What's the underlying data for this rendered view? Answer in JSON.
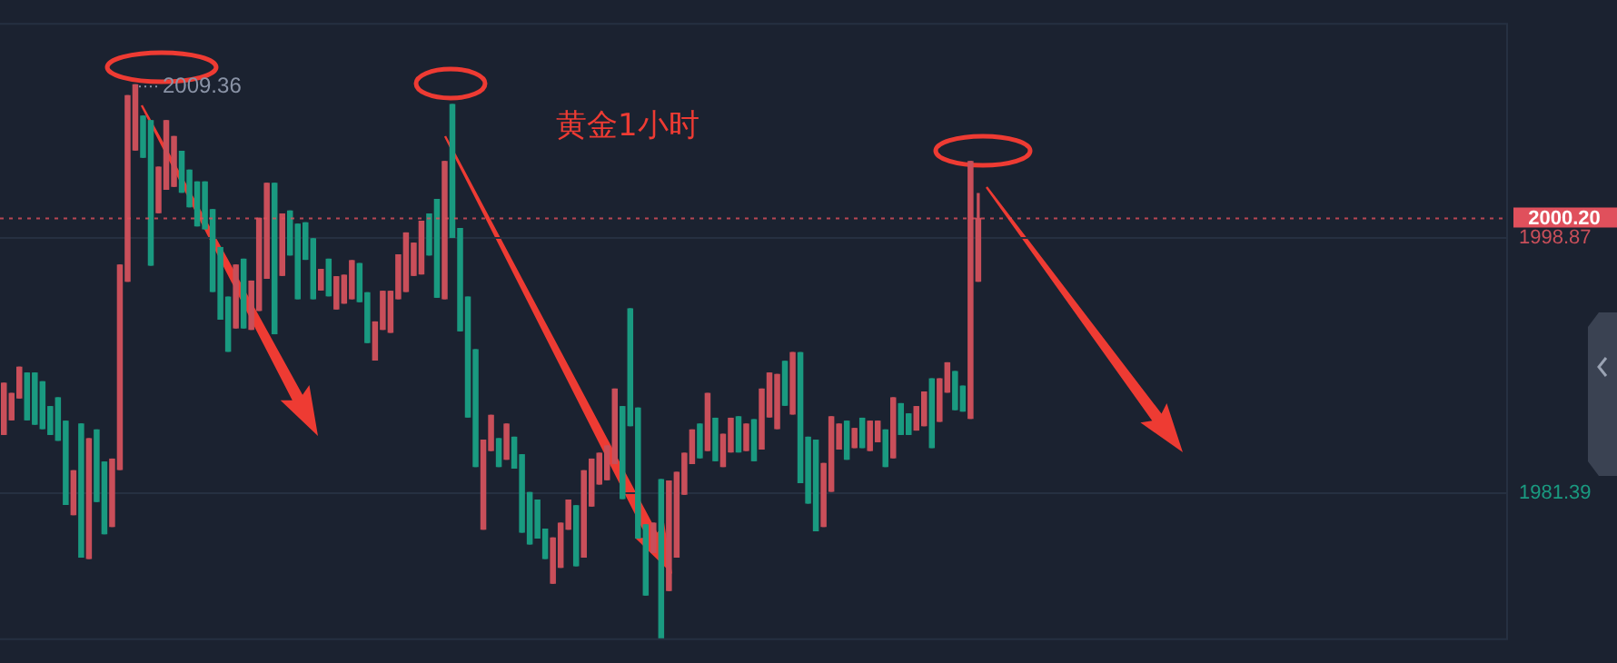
{
  "chart_data": {
    "type": "candlestick",
    "categories": [
      null,
      null,
      null,
      null,
      null,
      null,
      null,
      null,
      null,
      null,
      null,
      null,
      null,
      null,
      null,
      null,
      null,
      null,
      null,
      null,
      null,
      null,
      null,
      null,
      null,
      null,
      null,
      null,
      null,
      null,
      null,
      null,
      null,
      null,
      null,
      null,
      null,
      null,
      null,
      null,
      null,
      null,
      null,
      null,
      null,
      null,
      null,
      null,
      null,
      null,
      null,
      null,
      null,
      null,
      null,
      null,
      null,
      null,
      null,
      null,
      null,
      null,
      null,
      null,
      null,
      null,
      null,
      null,
      null,
      null,
      null,
      null,
      null,
      null,
      null,
      null,
      null,
      null,
      null,
      null,
      null,
      null,
      null,
      null,
      null,
      null,
      null,
      null,
      null,
      null,
      null,
      null,
      null,
      null,
      null,
      null,
      null,
      null,
      null,
      null,
      null,
      null,
      null,
      null,
      null,
      null,
      null,
      null,
      null,
      null,
      null,
      null,
      null,
      null,
      null,
      null,
      null,
      null,
      null,
      null,
      null,
      null,
      null,
      null,
      null,
      null,
      null,
      null,
      null,
      null,
      null,
      null,
      null,
      null,
      null,
      null,
      null,
      null,
      null,
      null,
      null,
      null,
      null,
      null,
      null,
      null,
      null,
      null,
      null,
      null,
      null,
      null,
      null,
      null,
      null,
      null,
      null,
      null,
      null,
      null,
      null,
      null,
      null,
      null,
      null,
      null,
      null,
      null,
      null,
      null,
      null,
      null,
      null,
      null,
      null,
      null,
      null,
      null,
      null,
      null,
      null,
      null,
      null,
      null,
      null,
      null,
      null,
      null,
      null,
      null,
      null,
      null,
      null,
      null,
      null
    ],
    "ohlc": [
      [
        1985.4,
        1988.9,
        1985.4,
        1988.9
      ],
      [
        1986.4,
        1988.2,
        1986.4,
        1988.2
      ],
      [
        1987.9,
        1990.0,
        1987.9,
        1990.0
      ],
      [
        1989.6,
        1989.6,
        1986.4,
        1986.4
      ],
      [
        1989.6,
        1989.6,
        1986.1,
        1986.1
      ],
      [
        1989.0,
        1989.0,
        1985.8,
        1985.8
      ],
      [
        1987.3,
        1987.3,
        1985.4,
        1985.4
      ],
      [
        1987.9,
        1987.9,
        1985.0,
        1985.0
      ],
      [
        1986.3,
        1986.3,
        1980.6,
        1980.6
      ],
      [
        1979.9,
        1982.9,
        1979.9,
        1982.9
      ],
      [
        1986.1,
        1986.1,
        1977.0,
        1977.0
      ],
      [
        1976.9,
        1985.1,
        1976.9,
        1985.1
      ],
      [
        1985.7,
        1985.7,
        1980.8,
        1980.8
      ],
      [
        1983.5,
        1983.5,
        1978.6,
        1978.6
      ],
      [
        1979.1,
        1983.7,
        1979.1,
        1983.7
      ],
      [
        1983.0,
        1997.0,
        1983.0,
        1997.0
      ],
      [
        1995.9,
        2008.6,
        1995.9,
        2008.6
      ],
      [
        2004.9,
        2009.36,
        2004.9,
        2009.36
      ],
      [
        2007.2,
        2007.2,
        2004.4,
        2004.4
      ],
      [
        2006.9,
        2006.9,
        1997.0,
        1997.0
      ],
      [
        2000.6,
        2003.7,
        2000.6,
        2003.7
      ],
      [
        2002.2,
        2006.9,
        2002.2,
        2006.9
      ],
      [
        2002.4,
        2005.8,
        2002.4,
        2005.8
      ],
      [
        2004.8,
        2004.8,
        2002.0,
        2002.0
      ],
      [
        2003.5,
        2003.5,
        2001.0,
        2001.0
      ],
      [
        2002.7,
        2002.7,
        1999.7,
        1999.7
      ],
      [
        2002.7,
        2002.7,
        1999.5,
        1999.5
      ],
      [
        2000.8,
        2000.8,
        1995.2,
        1995.2
      ],
      [
        1998.2,
        1998.2,
        1993.3,
        1993.3
      ],
      [
        1994.8,
        1994.8,
        1991.1,
        1991.1
      ],
      [
        1992.7,
        1997.0,
        1992.7,
        1997.0
      ],
      [
        1997.4,
        1997.4,
        1992.7,
        1992.7
      ],
      [
        1992.6,
        1995.9,
        1992.6,
        1995.9
      ],
      [
        1993.9,
        2000.2,
        1993.9,
        2000.2
      ],
      [
        1996.1,
        2002.6,
        1996.1,
        2002.6
      ],
      [
        2002.6,
        2002.6,
        1992.3,
        1992.3
      ],
      [
        1996.3,
        2000.5,
        1996.3,
        2000.5
      ],
      [
        2000.7,
        2000.7,
        1997.7,
        1997.7
      ],
      [
        1999.8,
        1999.8,
        1994.7,
        1994.7
      ],
      [
        1999.9,
        1999.9,
        1997.4,
        1997.4
      ],
      [
        1998.8,
        1998.8,
        1994.7,
        1994.7
      ],
      [
        1995.3,
        1996.7,
        1995.3,
        1996.7
      ],
      [
        1997.4,
        1997.4,
        1994.9,
        1994.9
      ],
      [
        1994.0,
        1996.2,
        1994.0,
        1996.2
      ],
      [
        1994.4,
        1996.3,
        1994.4,
        1996.3
      ],
      [
        1994.7,
        1997.3,
        1994.7,
        1997.3
      ],
      [
        1997.1,
        1997.1,
        1994.5,
        1994.5
      ],
      [
        1995.1,
        1995.1,
        1991.7,
        1991.7
      ],
      [
        1990.5,
        1993.1,
        1990.5,
        1993.1
      ],
      [
        1992.6,
        1995.2,
        1992.6,
        1995.2
      ],
      [
        1992.4,
        1995.2,
        1992.4,
        1995.2
      ],
      [
        1994.7,
        1997.7,
        1994.7,
        1997.7
      ],
      [
        1995.2,
        1999.2,
        1995.2,
        1999.2
      ],
      [
        1996.3,
        1998.5,
        1996.3,
        1998.5
      ],
      [
        1996.4,
        2000.0,
        1996.4,
        2000.0
      ],
      [
        2000.5,
        2000.5,
        1997.7,
        1997.7
      ],
      [
        2001.5,
        2001.5,
        1994.8,
        1994.8
      ],
      [
        1994.7,
        2004.1,
        1994.7,
        2004.1
      ],
      [
        2008.0,
        2008.0,
        1998.9,
        1998.9
      ],
      [
        1999.5,
        1999.5,
        1992.5,
        1992.5
      ],
      [
        1994.8,
        1994.8,
        1986.6,
        1986.6
      ],
      [
        1991.2,
        1991.2,
        1983.2,
        1983.2
      ],
      [
        1978.9,
        1985.0,
        1978.9,
        1985.0
      ],
      [
        1984.3,
        1986.7,
        1984.3,
        1986.7
      ],
      [
        1985.1,
        1985.1,
        1983.2,
        1983.2
      ],
      [
        1983.7,
        1986.1,
        1983.7,
        1986.1
      ],
      [
        1985.2,
        1985.2,
        1983.1,
        1983.1
      ],
      [
        1984.0,
        1984.0,
        1978.7,
        1978.7
      ],
      [
        1981.4,
        1981.4,
        1977.9,
        1977.9
      ],
      [
        1980.9,
        1980.9,
        1978.3,
        1978.3
      ],
      [
        1978.9,
        1978.9,
        1976.9,
        1976.9
      ],
      [
        1975.2,
        1978.3,
        1975.2,
        1978.3
      ],
      [
        1976.3,
        1979.3,
        1976.3,
        1979.3
      ],
      [
        1978.9,
        1980.9,
        1978.9,
        1980.9
      ],
      [
        1980.5,
        1980.5,
        1976.4,
        1976.4
      ],
      [
        1977.0,
        1982.9,
        1977.0,
        1982.9
      ],
      [
        1980.5,
        1983.7,
        1980.5,
        1983.7
      ],
      [
        1982.0,
        1984.1,
        1982.0,
        1984.1
      ],
      [
        1982.3,
        1984.6,
        1982.3,
        1984.6
      ],
      [
        1983.4,
        1988.5,
        1983.4,
        1988.5
      ],
      [
        1987.3,
        1987.3,
        1981.0,
        1981.0
      ],
      [
        1994.0,
        1994.0,
        1986.0,
        1986.0
      ],
      [
        1987.2,
        1987.2,
        1978.3,
        1978.3
      ],
      [
        1979.2,
        1979.2,
        1974.4,
        1974.4
      ],
      [
        1977.3,
        1979.3,
        1977.3,
        1979.3
      ],
      [
        1982.3,
        1982.3,
        1971.4,
        1971.4
      ],
      [
        1974.7,
        1982.2,
        1974.7,
        1982.2
      ],
      [
        1977.0,
        1982.8,
        1977.0,
        1982.8
      ],
      [
        1981.3,
        1984.1,
        1981.3,
        1984.1
      ],
      [
        1983.4,
        1985.7,
        1983.4,
        1985.7
      ],
      [
        1986.1,
        1986.1,
        1983.8,
        1983.8
      ],
      [
        1984.3,
        1988.2,
        1984.3,
        1988.2
      ],
      [
        1986.5,
        1986.5,
        1983.6,
        1983.6
      ],
      [
        1983.2,
        1985.4,
        1983.2,
        1985.4
      ],
      [
        1984.2,
        1986.5,
        1984.2,
        1986.5
      ],
      [
        1986.6,
        1986.6,
        1984.2,
        1984.2
      ],
      [
        1984.3,
        1986.1,
        1984.3,
        1986.1
      ],
      [
        1986.4,
        1986.4,
        1983.6,
        1983.6
      ],
      [
        1984.4,
        1988.5,
        1984.4,
        1988.5
      ],
      [
        1986.6,
        1989.6,
        1986.6,
        1989.6
      ],
      [
        1985.8,
        1989.5,
        1985.8,
        1989.5
      ],
      [
        1990.4,
        1990.4,
        1987.4,
        1987.4
      ],
      [
        1986.8,
        1991.0,
        1986.8,
        1991.0
      ],
      [
        1991.0,
        1991.0,
        1982.1,
        1982.1
      ],
      [
        1985.2,
        1985.2,
        1980.7,
        1980.7
      ],
      [
        1985.0,
        1985.0,
        1978.8,
        1978.8
      ],
      [
        1979.1,
        1983.4,
        1979.1,
        1983.4
      ],
      [
        1981.5,
        1986.6,
        1981.5,
        1986.6
      ],
      [
        1984.4,
        1986.1,
        1984.4,
        1986.1
      ],
      [
        1986.3,
        1986.3,
        1983.7,
        1983.7
      ],
      [
        1984.5,
        1985.8,
        1984.5,
        1985.8
      ],
      [
        1986.5,
        1986.5,
        1984.5,
        1984.5
      ],
      [
        1984.3,
        1986.3,
        1984.3,
        1986.3
      ],
      [
        1984.9,
        1986.3,
        1984.9,
        1986.3
      ],
      [
        1985.7,
        1985.7,
        1983.2,
        1983.2
      ],
      [
        1983.8,
        1987.9,
        1983.8,
        1987.9
      ],
      [
        1987.5,
        1987.5,
        1985.4,
        1985.4
      ],
      [
        1986.8,
        1986.8,
        1985.4,
        1985.4
      ],
      [
        1985.7,
        1987.3,
        1985.7,
        1987.3
      ],
      [
        1986.0,
        1988.3,
        1986.0,
        1988.3
      ],
      [
        1989.2,
        1989.2,
        1984.5,
        1984.5
      ],
      [
        1986.3,
        1989.2,
        1986.3,
        1989.2
      ],
      [
        1988.3,
        1990.3,
        1988.3,
        1990.3
      ],
      [
        1989.7,
        1989.7,
        1987.1,
        1987.1
      ],
      [
        1988.7,
        1988.7,
        1987.0,
        1987.0
      ],
      [
        1986.5,
        2004.1,
        1986.5,
        2004.1
      ],
      [
        1995.9,
        2001.9,
        1995.9,
        2000.2
      ],
      null,
      null,
      null,
      null,
      null,
      null,
      null,
      null,
      null,
      null,
      null,
      null,
      null,
      null,
      null,
      null,
      null,
      null,
      null,
      null,
      null,
      null,
      null,
      null,
      null,
      null,
      null,
      null,
      null,
      null,
      null,
      null,
      null,
      null,
      null,
      null,
      null,
      null,
      null,
      null,
      null,
      null,
      null,
      null,
      null,
      null,
      null,
      null,
      null,
      null,
      null,
      null,
      null,
      null,
      null,
      null,
      null,
      null,
      null,
      null,
      null,
      null,
      null,
      null,
      null,
      null,
      null,
      null
    ],
    "ylim": [
      1971.3,
      2013.6
    ],
    "yticks": [
      1981.39,
      1998.87
    ],
    "grid": "y",
    "legend": false,
    "ref_lines": [
      {
        "axis": "y",
        "value": 2000.2,
        "label": "2000.20",
        "color": "#e0505c",
        "line_style": "dotted"
      }
    ],
    "annotations": [
      "黄金1小时",
      "2009.36"
    ]
  }
}
